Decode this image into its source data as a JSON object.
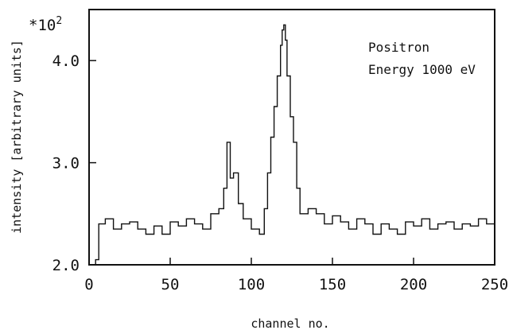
{
  "chart_data": {
    "type": "line",
    "title": "",
    "xlabel": "channel no.",
    "ylabel": "intensity [arbitrary units]",
    "multiplier_label": "*10",
    "multiplier_exponent": "2",
    "annotation": [
      "Positron",
      "Energy 1000 eV"
    ],
    "xlim": [
      0,
      250
    ],
    "ylim": [
      2.0,
      4.5
    ],
    "xticks": [
      0,
      50,
      100,
      150,
      200,
      250
    ],
    "xtick_labels": [
      "0",
      "50",
      "100",
      "150",
      "200",
      "250"
    ],
    "yticks": [
      2.0,
      3.0,
      4.0
    ],
    "ytick_labels": [
      "2.0",
      "3.0",
      "4.0"
    ],
    "grid": false,
    "step": true,
    "series": [
      {
        "name": "",
        "x": [
          4,
          6,
          10,
          15,
          20,
          25,
          30,
          35,
          40,
          45,
          50,
          55,
          60,
          65,
          70,
          75,
          80,
          83,
          85,
          87,
          89,
          92,
          95,
          100,
          105,
          108,
          110,
          112,
          114,
          116,
          118,
          119,
          120,
          121,
          122,
          124,
          126,
          128,
          130,
          135,
          140,
          145,
          150,
          155,
          160,
          165,
          170,
          175,
          180,
          185,
          190,
          195,
          200,
          205,
          210,
          215,
          220,
          225,
          230,
          235,
          240,
          245,
          250
        ],
        "y": [
          2.05,
          2.4,
          2.45,
          2.35,
          2.4,
          2.42,
          2.35,
          2.3,
          2.38,
          2.3,
          2.42,
          2.38,
          2.45,
          2.4,
          2.35,
          2.5,
          2.55,
          2.75,
          3.2,
          2.85,
          2.9,
          2.6,
          2.45,
          2.35,
          2.3,
          2.55,
          2.9,
          3.25,
          3.55,
          3.85,
          4.15,
          4.3,
          4.35,
          4.2,
          3.85,
          3.45,
          3.2,
          2.75,
          2.5,
          2.55,
          2.5,
          2.4,
          2.48,
          2.42,
          2.35,
          2.45,
          2.4,
          2.3,
          2.4,
          2.35,
          2.3,
          2.42,
          2.38,
          2.45,
          2.35,
          2.4,
          2.42,
          2.35,
          2.4,
          2.38,
          2.45,
          2.4,
          2.4
        ]
      }
    ]
  }
}
